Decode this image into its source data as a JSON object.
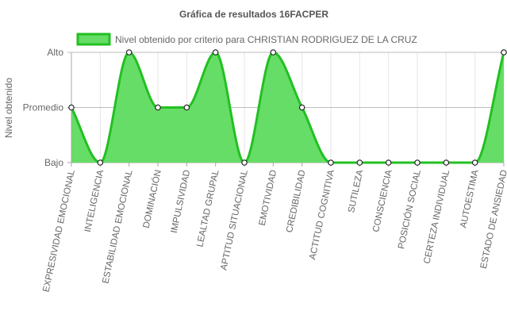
{
  "chart_data": {
    "type": "line",
    "title": "Gráfica de resultados 16FACPER",
    "ylabel": "Nivel obtenido",
    "xlabel": "",
    "y_levels": [
      "Bajo",
      "Promedio",
      "Alto"
    ],
    "ylim": [
      0,
      2
    ],
    "categories": [
      "EXPRESIVIDAD EMOCIONAL",
      "INTELIGENCIA",
      "ESTABILIDAD EMOCIONAL",
      "DOMINACIÓN",
      "IMPULSIVIDAD",
      "LEALTAD GRUPAL",
      "APTITUD SITUACIONAL",
      "EMOTIVIDAD",
      "CREDIBILIDAD",
      "ACTITUD COGNITIVA",
      "SUTILEZA",
      "CONSCIENCIA",
      "POSICIÓN SOCIAL",
      "CERTEZA INDIVIDUAL",
      "AUTOESTIMA",
      "ESTADO DE ANSIEDAD"
    ],
    "series": [
      {
        "name": "Nivel obtenido por criterio para CHRISTIAN RODRIGUEZ DE LA CRUZ",
        "values": [
          1,
          0,
          2,
          1,
          1,
          2,
          0,
          2,
          1,
          0,
          0,
          0,
          0,
          0,
          0,
          2
        ]
      }
    ],
    "legend_position": "top",
    "grid": true,
    "colors": {
      "line": "#22c022",
      "fill": "#66dd66",
      "grid": "#e6e6e6",
      "axis": "#a8a8a8",
      "text": "#666666",
      "title": "#555555"
    }
  }
}
